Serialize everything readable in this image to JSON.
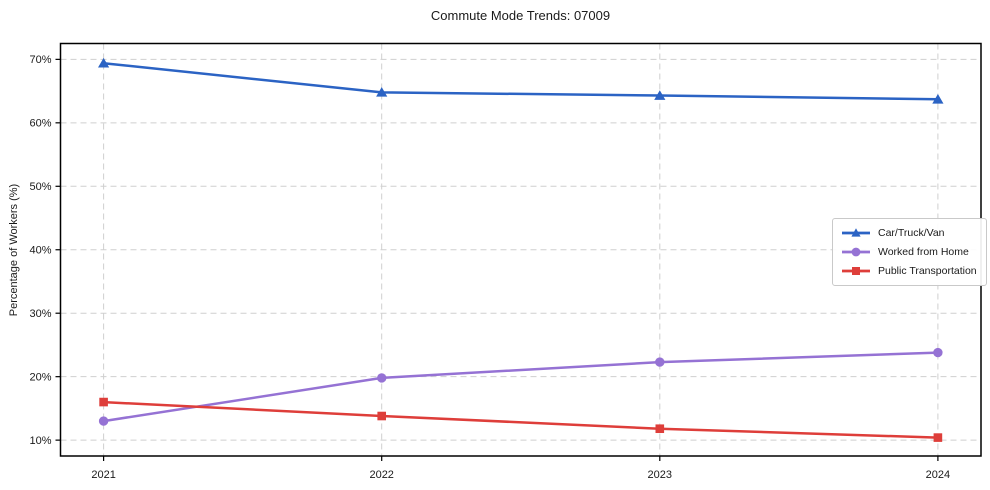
{
  "chart_data": {
    "type": "line",
    "title": "Commute Mode Trends: 07009",
    "xlabel": "",
    "ylabel": "Percentage of Workers (%)",
    "x": [
      2021,
      2022,
      2023,
      2024
    ],
    "x_tick_labels": [
      "2021",
      "2022",
      "2023",
      "2024"
    ],
    "y_ticks": [
      10,
      20,
      30,
      40,
      50,
      60,
      70
    ],
    "y_tick_labels": [
      "10%",
      "20%",
      "30%",
      "40%",
      "50%",
      "60%",
      "70%"
    ],
    "xlim": [
      2020.845,
      2024.155
    ],
    "ylim": [
      7.5,
      72.5
    ],
    "grid": true,
    "grid_color": "#cfcfcf",
    "axis_color": "#000000",
    "text_color": "#1a1a1a",
    "legend_position": "center-right",
    "series": [
      {
        "name": "Car/Truck/Van",
        "marker": "triangle",
        "color": "#2b63c4",
        "values": [
          69.4,
          64.8,
          64.3,
          63.7
        ]
      },
      {
        "name": "Worked from Home",
        "marker": "circle",
        "color": "#9572d4",
        "values": [
          13.0,
          19.8,
          22.3,
          23.8
        ]
      },
      {
        "name": "Public Transportation",
        "marker": "square",
        "color": "#de3e3a",
        "values": [
          16.0,
          13.8,
          11.8,
          10.4
        ]
      }
    ]
  }
}
